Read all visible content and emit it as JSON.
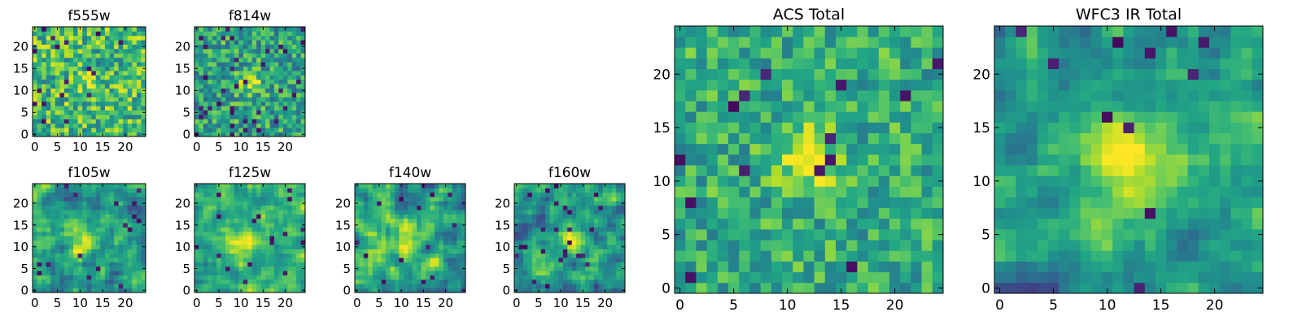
{
  "chart_data": [
    {
      "type": "heatmap",
      "title": "f555w",
      "xticks": [
        "0",
        "5",
        "10",
        "15",
        "20"
      ],
      "yticks": [
        "0",
        "5",
        "10",
        "15",
        "20"
      ],
      "grid": [
        25,
        25
      ],
      "xlim": [
        -0.5,
        24.5
      ],
      "ylim": [
        -0.5,
        24.5
      ],
      "peak": [
        12,
        12
      ],
      "colormap": "viridis",
      "pattern": {
        "seed": 11,
        "base": 0.68,
        "noise": 0.55,
        "smooth": 0.0,
        "peak": 0.18,
        "sigma": 1.5,
        "hole_rate": 0.04
      }
    },
    {
      "type": "heatmap",
      "title": "f814w",
      "xticks": [
        "0",
        "5",
        "10",
        "15",
        "20"
      ],
      "yticks": [
        "0",
        "5",
        "10",
        "15",
        "20"
      ],
      "grid": [
        25,
        25
      ],
      "xlim": [
        -0.5,
        24.5
      ],
      "ylim": [
        -0.5,
        24.5
      ],
      "peak": [
        12,
        12
      ],
      "colormap": "viridis",
      "pattern": {
        "seed": 23,
        "base": 0.58,
        "noise": 0.5,
        "smooth": 0.0,
        "peak": 0.4,
        "sigma": 1.8,
        "hole_rate": 0.05
      }
    },
    {
      "type": "heatmap",
      "title": "f105w",
      "xticks": [
        "0",
        "5",
        "10",
        "15",
        "20"
      ],
      "yticks": [
        "0",
        "5",
        "10",
        "15",
        "20"
      ],
      "grid": [
        25,
        25
      ],
      "xlim": [
        -0.5,
        24.5
      ],
      "ylim": [
        -0.5,
        24.5
      ],
      "peak": [
        11,
        11
      ],
      "colormap": "viridis",
      "pattern": {
        "seed": 37,
        "base": 0.55,
        "noise": 0.55,
        "smooth": 1.0,
        "peak": 0.35,
        "sigma": 2.5,
        "hole_rate": 0.03
      }
    },
    {
      "type": "heatmap",
      "title": "f125w",
      "xticks": [
        "0",
        "5",
        "10",
        "15",
        "20"
      ],
      "yticks": [
        "0",
        "5",
        "10",
        "15",
        "20"
      ],
      "grid": [
        25,
        25
      ],
      "xlim": [
        -0.5,
        24.5
      ],
      "ylim": [
        -0.5,
        24.5
      ],
      "peak": [
        11,
        11
      ],
      "colormap": "viridis",
      "pattern": {
        "seed": 41,
        "base": 0.62,
        "noise": 0.45,
        "smooth": 1.0,
        "peak": 0.3,
        "sigma": 3.0,
        "hole_rate": 0.02
      }
    },
    {
      "type": "heatmap",
      "title": "f140w",
      "xticks": [
        "0",
        "5",
        "10",
        "15",
        "20"
      ],
      "yticks": [
        "0",
        "5",
        "10",
        "15",
        "20"
      ],
      "grid": [
        25,
        25
      ],
      "xlim": [
        -0.5,
        24.5
      ],
      "ylim": [
        -0.5,
        24.5
      ],
      "peak": [
        11,
        11
      ],
      "colormap": "viridis",
      "pattern": {
        "seed": 53,
        "base": 0.6,
        "noise": 0.55,
        "smooth": 1.0,
        "peak": 0.3,
        "sigma": 2.5,
        "hole_rate": 0.03
      }
    },
    {
      "type": "heatmap",
      "title": "f160w",
      "xticks": [
        "0",
        "5",
        "10",
        "15",
        "20"
      ],
      "yticks": [
        "0",
        "5",
        "10",
        "15",
        "20"
      ],
      "grid": [
        25,
        25
      ],
      "xlim": [
        -0.5,
        24.5
      ],
      "ylim": [
        -0.5,
        24.5
      ],
      "peak": [
        12,
        12
      ],
      "colormap": "viridis",
      "pattern": {
        "seed": 67,
        "base": 0.55,
        "noise": 0.55,
        "smooth": 1.0,
        "peak": 0.35,
        "sigma": 2.2,
        "hole_rate": 0.03
      }
    },
    {
      "type": "heatmap",
      "title": "ACS Total",
      "xticks": [
        "0",
        "5",
        "10",
        "15",
        "20"
      ],
      "yticks": [
        "0",
        "5",
        "10",
        "15",
        "20"
      ],
      "grid": [
        25,
        25
      ],
      "xlim": [
        -0.5,
        24.5
      ],
      "ylim": [
        -0.5,
        24.5
      ],
      "peak": [
        12,
        12
      ],
      "colormap": "viridis",
      "pattern": {
        "seed": 79,
        "base": 0.62,
        "noise": 0.42,
        "smooth": 0.0,
        "peak": 0.4,
        "sigma": 2.0,
        "hole_rate": 0.03
      }
    },
    {
      "type": "heatmap",
      "title": "WFC3 IR Total",
      "xticks": [
        "0",
        "5",
        "10",
        "15",
        "20"
      ],
      "yticks": [
        "0",
        "5",
        "10",
        "15",
        "20"
      ],
      "grid": [
        25,
        25
      ],
      "xlim": [
        -0.5,
        24.5
      ],
      "ylim": [
        -0.5,
        24.5
      ],
      "peak": [
        12,
        12
      ],
      "colormap": "viridis",
      "pattern": {
        "seed": 97,
        "base": 0.55,
        "noise": 0.4,
        "smooth": 1.0,
        "peak": 0.45,
        "sigma": 2.8,
        "hole_rate": 0.02
      }
    }
  ],
  "colors": {
    "frame": "#000000",
    "background": "#ffffff"
  }
}
